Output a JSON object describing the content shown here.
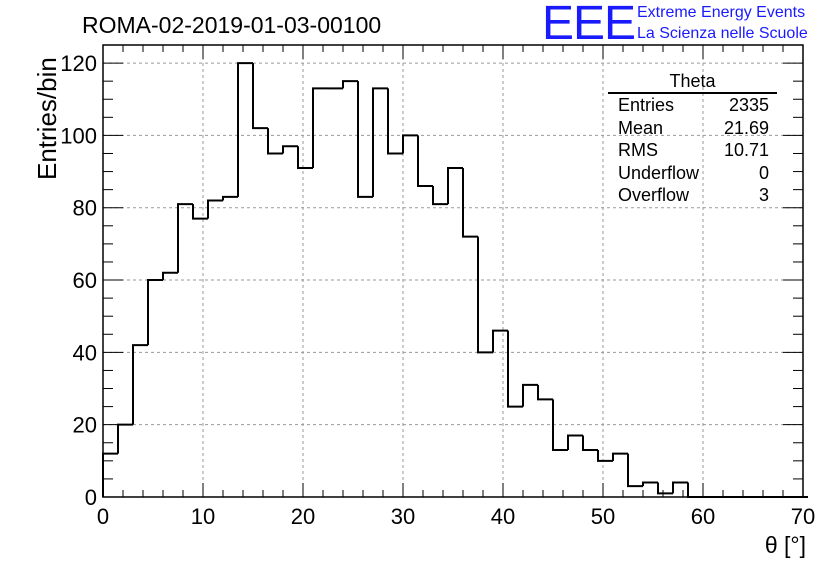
{
  "header": {
    "run_title": "ROMA-02-2019-01-03-00100"
  },
  "logo": {
    "mark": "EEE",
    "line1": "Extreme Energy Events",
    "line2": "La Scienza nelle Scuole",
    "color": "#1a1aff"
  },
  "stats_box": {
    "title": "Theta",
    "rows": [
      {
        "label": "Entries",
        "value": "2335"
      },
      {
        "label": "Mean",
        "value": "21.69"
      },
      {
        "label": "RMS",
        "value": "10.71"
      },
      {
        "label": "Underflow",
        "value": "0"
      },
      {
        "label": "Overflow",
        "value": "3"
      }
    ]
  },
  "chart_data": {
    "type": "bar",
    "style": "step-histogram",
    "title": "ROMA-02-2019-01-03-00100",
    "xlabel": "θ [°]",
    "ylabel": "Entries/bin",
    "xlim": [
      0,
      70
    ],
    "ylim": [
      0,
      125
    ],
    "bin_width": 1.5,
    "x_ticks": [
      "0",
      "10",
      "20",
      "30",
      "40",
      "50",
      "60",
      "70"
    ],
    "y_ticks": [
      "0",
      "20",
      "40",
      "60",
      "80",
      "100",
      "120"
    ],
    "grid": true,
    "series": [
      {
        "values": [
          12,
          20,
          42,
          60,
          62,
          81,
          77,
          82,
          83,
          120,
          102,
          95,
          97,
          91,
          113,
          113,
          115,
          83,
          113,
          95,
          100,
          86,
          81,
          91,
          72,
          40,
          46,
          25,
          31,
          27,
          13,
          17,
          13,
          10,
          12,
          3,
          4,
          1,
          4,
          0,
          0,
          0,
          0,
          0,
          0,
          0,
          0
        ]
      }
    ]
  }
}
